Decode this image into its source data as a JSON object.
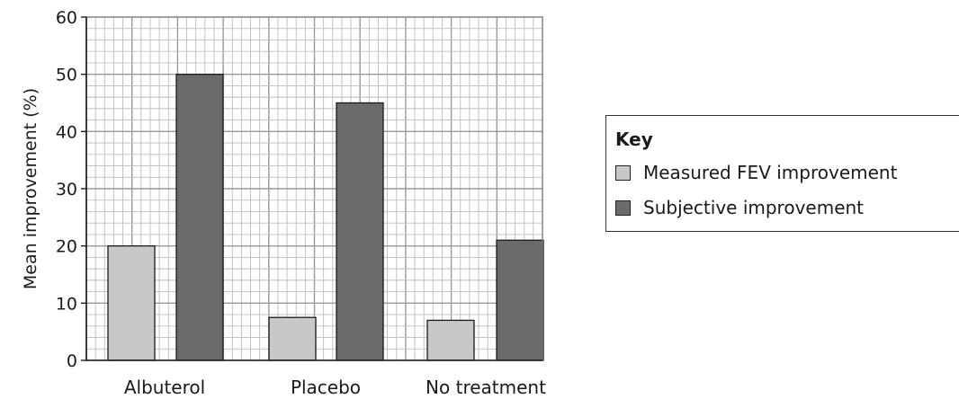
{
  "chart_data": {
    "type": "bar",
    "categories": [
      "Albuterol",
      "Placebo",
      "No treatment"
    ],
    "series": [
      {
        "name": "Measured FEV improvement",
        "values": [
          20,
          7.5,
          7
        ],
        "color": "#c8c8c8"
      },
      {
        "name": "Subjective improvement",
        "values": [
          50,
          45,
          21
        ],
        "color": "#6b6b6b"
      }
    ],
    "ylabel": "Mean improvement (%)",
    "xlabel": "",
    "ylim": [
      0,
      60
    ],
    "yticks": [
      0,
      10,
      20,
      30,
      40,
      50,
      60
    ],
    "grid": true,
    "legend": {
      "title": "Key",
      "placement": "right"
    }
  }
}
